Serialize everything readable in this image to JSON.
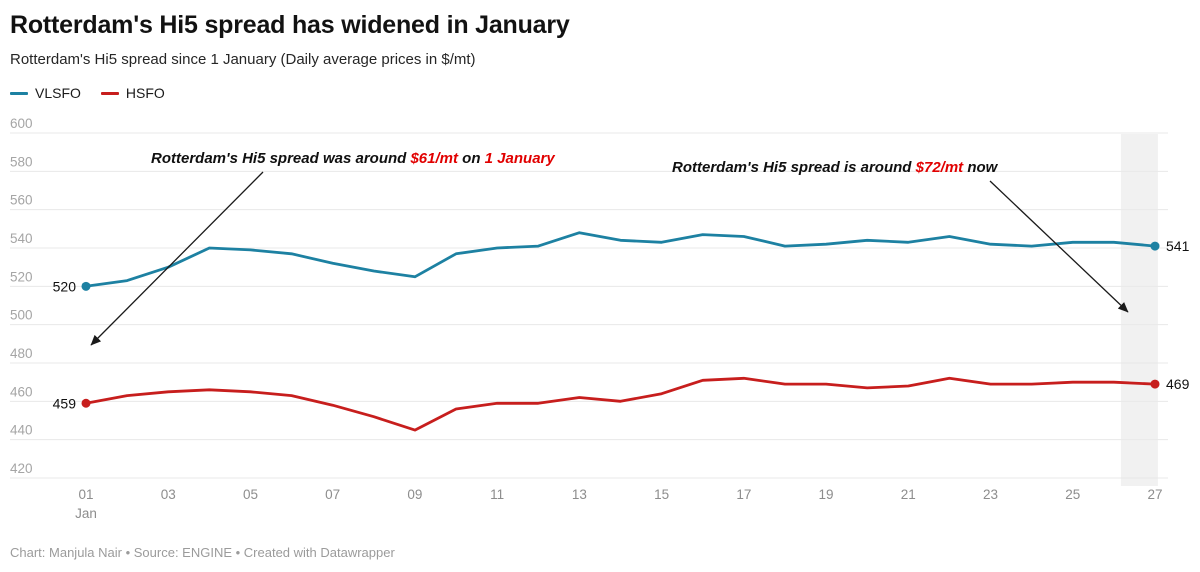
{
  "header": {
    "title": "Rotterdam's Hi5 spread has widened in January",
    "subtitle": "Rotterdam's Hi5 spread since 1 January (Daily average prices in $/mt)"
  },
  "legend": {
    "items": [
      {
        "label": "VLSFO",
        "color": "#1d81a2"
      },
      {
        "label": "HSFO",
        "color": "#c71e1d"
      }
    ]
  },
  "annotations": [
    {
      "parts": [
        {
          "text": "Rotterdam's Hi5 spread was around "
        },
        {
          "text": "$61/mt",
          "red": true
        },
        {
          "text": " on "
        },
        {
          "text": "1 January",
          "red": true
        }
      ]
    },
    {
      "parts": [
        {
          "text": "Rotterdam's Hi5 spread is around "
        },
        {
          "text": "$72/mt",
          "red": true
        },
        {
          "text": " now"
        }
      ]
    }
  ],
  "footer": {
    "text": "Chart: Manjula Nair • Source: ENGINE • Created with Datawrapper"
  },
  "colors": {
    "vlsfo": "#1d81a2",
    "hsfo": "#c71e1d",
    "annotation_red": "#e10000",
    "gridline": "#e8e8e8",
    "y_tick_label": "#a5a5a5",
    "x_tick_label": "#8d8d8d",
    "value_label": "#111111",
    "highlight_band": "#f1f1f1"
  },
  "chart_data": {
    "type": "line",
    "title": "Rotterdam's Hi5 spread has widened in January",
    "subtitle": "Rotterdam's Hi5 spread since 1 January (Daily average prices in $/mt)",
    "xlabel": "",
    "ylabel": "Daily average prices in $/mt",
    "x": [
      1,
      2,
      3,
      4,
      5,
      6,
      7,
      8,
      9,
      10,
      11,
      12,
      13,
      14,
      15,
      16,
      17,
      18,
      19,
      20,
      21,
      22,
      23,
      24,
      25,
      26,
      27
    ],
    "x_ticks": [
      1,
      3,
      5,
      7,
      9,
      11,
      13,
      15,
      17,
      19,
      21,
      23,
      25,
      27
    ],
    "x_tick_labels": [
      "01",
      "03",
      "05",
      "07",
      "09",
      "11",
      "13",
      "15",
      "17",
      "19",
      "21",
      "23",
      "25",
      "27"
    ],
    "x_first_tick_sublabel": "Jan",
    "y_ticks": [
      600,
      580,
      560,
      540,
      520,
      500,
      480,
      460,
      440,
      420
    ],
    "ylim": [
      415,
      605
    ],
    "grid": "horizontal",
    "legend_position": "top-left",
    "series": [
      {
        "name": "VLSFO",
        "color": "#1d81a2",
        "values": [
          520,
          523,
          530,
          540,
          539,
          537,
          532,
          528,
          525,
          537,
          540,
          541,
          548,
          544,
          543,
          547,
          546,
          541,
          542,
          544,
          543,
          546,
          542,
          541,
          543,
          543,
          541
        ],
        "first_point_label": "520",
        "last_point_label": "541"
      },
      {
        "name": "HSFO",
        "color": "#c71e1d",
        "values": [
          459,
          463,
          465,
          466,
          465,
          463,
          458,
          452,
          445,
          456,
          459,
          459,
          462,
          460,
          464,
          471,
          472,
          469,
          469,
          467,
          468,
          472,
          469,
          469,
          470,
          470,
          469
        ],
        "first_point_label": "459",
        "last_point_label": "469"
      }
    ],
    "highlight_band": {
      "from_day": 26.17,
      "to_day": 27.07
    }
  }
}
